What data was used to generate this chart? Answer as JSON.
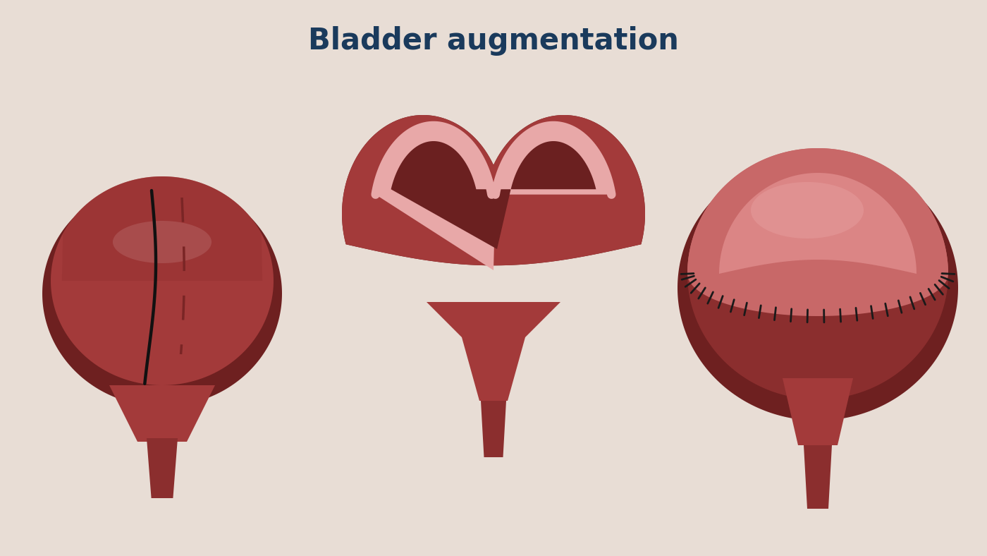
{
  "title": "Bladder augmentation",
  "title_color": "#1a3a5c",
  "title_fontsize": 30,
  "background_color": "#e8ddd5",
  "bladder_dark": "#8b2e2e",
  "bladder_main": "#a33a3a",
  "bladder_mid": "#963232",
  "bladder_shadow": "#7a2222",
  "bladder_rim": "#6e2020",
  "bladder_highlight": "#c07878",
  "bowel_pink": "#e8a8a8",
  "bowel_light_pink": "#f0c0b8",
  "inner_dark": "#6b2020",
  "inner_darker": "#5a1818",
  "stitch_color": "#1a1a1a",
  "cut_line_color": "#111111",
  "dashed_color": "#7a2525"
}
